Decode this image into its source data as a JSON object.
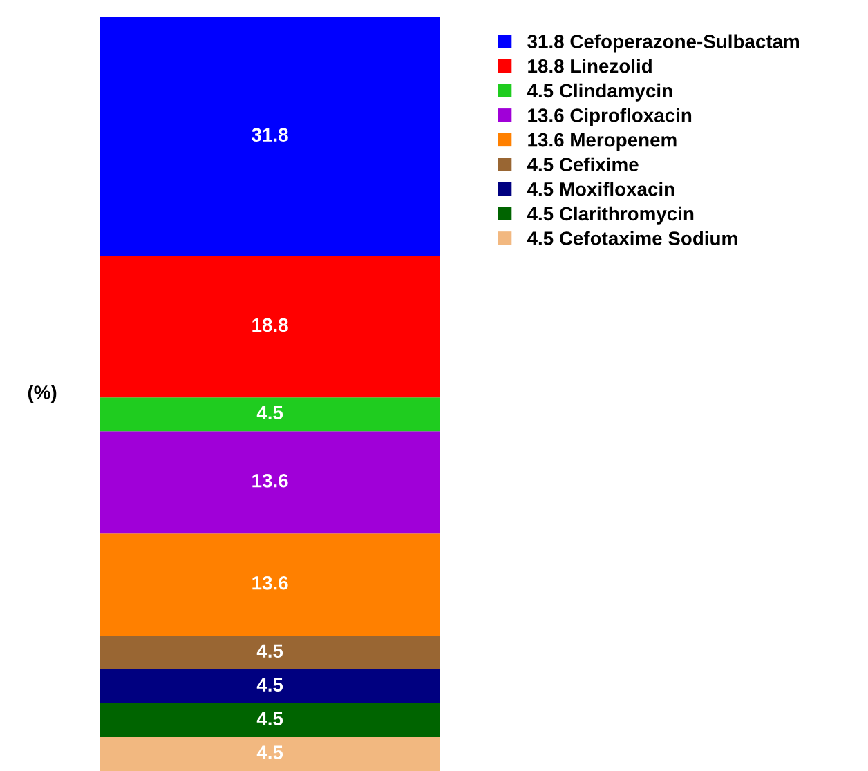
{
  "chart_data": {
    "type": "bar",
    "stacked": true,
    "ylabel": "(%)",
    "categories": [
      null
    ],
    "data_labels": true,
    "legend": "top right",
    "series": [
      {
        "name": "4.5 Cefotaxime Sodium",
        "color": "#f2b880",
        "values": [
          4.5
        ]
      },
      {
        "name": "4.5 Clarithromycin",
        "color": "#006400",
        "values": [
          4.5
        ]
      },
      {
        "name": "4.5 Moxifloxacin",
        "color": "#000080",
        "values": [
          4.5
        ]
      },
      {
        "name": "4.5 Cefixime",
        "color": "#996633",
        "values": [
          4.5
        ]
      },
      {
        "name": "13.6 Meropenem",
        "color": "#ff8000",
        "values": [
          13.6
        ]
      },
      {
        "name": "13.6 Ciprofloxacin",
        "color": "#a000d8",
        "values": [
          13.6
        ]
      },
      {
        "name": "4.5 Clindamycin",
        "color": "#1fcc1f",
        "values": [
          4.5
        ]
      },
      {
        "name": "18.8 Linezolid",
        "color": "#ff0000",
        "values": [
          18.8
        ]
      },
      {
        "name": "31.8 Cefoperazone-Sulbactam",
        "color": "#0000ff",
        "values": [
          31.8
        ]
      }
    ]
  }
}
